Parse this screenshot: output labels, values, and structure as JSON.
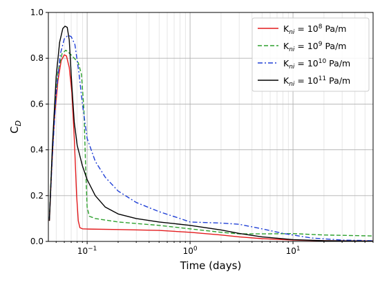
{
  "chart_data": {
    "type": "line",
    "x_scale": "log",
    "xlabel": "Time (days)",
    "ylabel": "C",
    "ylabel_sub": "D",
    "xlim": [
      0.042,
      60
    ],
    "ylim": [
      0,
      1.0
    ],
    "y_ticks": [
      0.0,
      0.2,
      0.4,
      0.6,
      0.8,
      1.0
    ],
    "y_tick_labels": [
      "0.0",
      "0.2",
      "0.4",
      "0.6",
      "0.8",
      "1.0"
    ],
    "x_ticks": [
      {
        "value": 0.1,
        "base": "10",
        "exp": "−1"
      },
      {
        "value": 1,
        "base": "10",
        "exp": "0"
      },
      {
        "value": 10,
        "base": "10",
        "exp": "1"
      }
    ],
    "grid": true,
    "legend_position": "top-right",
    "series": [
      {
        "name": "K_ni = 10^8 Pa/m",
        "legend": {
          "k": "K",
          "sub": "ni",
          "eq": " = 10",
          "exp": "8",
          "unit": " Pa/m"
        },
        "color": "#e31a1c",
        "dash": "solid",
        "points": [
          [
            0.043,
            0.09
          ],
          [
            0.045,
            0.3
          ],
          [
            0.048,
            0.53
          ],
          [
            0.052,
            0.7
          ],
          [
            0.056,
            0.79
          ],
          [
            0.06,
            0.815
          ],
          [
            0.063,
            0.81
          ],
          [
            0.067,
            0.76
          ],
          [
            0.071,
            0.65
          ],
          [
            0.075,
            0.45
          ],
          [
            0.079,
            0.2
          ],
          [
            0.082,
            0.09
          ],
          [
            0.085,
            0.06
          ],
          [
            0.09,
            0.055
          ],
          [
            0.1,
            0.054
          ],
          [
            0.2,
            0.052
          ],
          [
            0.5,
            0.048
          ],
          [
            1,
            0.04
          ],
          [
            2,
            0.028
          ],
          [
            3,
            0.02
          ],
          [
            5,
            0.012
          ],
          [
            10,
            0.006
          ],
          [
            20,
            0.003
          ],
          [
            60,
            0.002
          ]
        ]
      },
      {
        "name": "K_ni = 10^9 Pa/m",
        "legend": {
          "k": "K",
          "sub": "ni",
          "eq": " = 10",
          "exp": "9",
          "unit": " Pa/m"
        },
        "color": "#2ca02c",
        "dash": "dashed",
        "points": [
          [
            0.043,
            0.1
          ],
          [
            0.045,
            0.32
          ],
          [
            0.048,
            0.56
          ],
          [
            0.052,
            0.74
          ],
          [
            0.057,
            0.82
          ],
          [
            0.062,
            0.835
          ],
          [
            0.068,
            0.82
          ],
          [
            0.075,
            0.8
          ],
          [
            0.082,
            0.78
          ],
          [
            0.088,
            0.73
          ],
          [
            0.093,
            0.58
          ],
          [
            0.097,
            0.3
          ],
          [
            0.1,
            0.15
          ],
          [
            0.105,
            0.11
          ],
          [
            0.12,
            0.1
          ],
          [
            0.2,
            0.085
          ],
          [
            0.5,
            0.07
          ],
          [
            1,
            0.055
          ],
          [
            2,
            0.04
          ],
          [
            3,
            0.033
          ],
          [
            5,
            0.033
          ],
          [
            10,
            0.034
          ],
          [
            20,
            0.028
          ],
          [
            60,
            0.024
          ]
        ]
      },
      {
        "name": "K_ni = 10^10 Pa/m",
        "legend": {
          "k": "K",
          "sub": "ni",
          "eq": " = 10",
          "exp": "10",
          "unit": " Pa/m"
        },
        "color": "#1f3fd6",
        "dash": "dashdot",
        "points": [
          [
            0.043,
            0.1
          ],
          [
            0.046,
            0.38
          ],
          [
            0.05,
            0.65
          ],
          [
            0.055,
            0.82
          ],
          [
            0.06,
            0.885
          ],
          [
            0.065,
            0.9
          ],
          [
            0.07,
            0.895
          ],
          [
            0.076,
            0.86
          ],
          [
            0.083,
            0.74
          ],
          [
            0.09,
            0.6
          ],
          [
            0.1,
            0.45
          ],
          [
            0.12,
            0.35
          ],
          [
            0.15,
            0.28
          ],
          [
            0.2,
            0.22
          ],
          [
            0.3,
            0.17
          ],
          [
            0.5,
            0.13
          ],
          [
            0.8,
            0.1
          ],
          [
            1,
            0.085
          ],
          [
            2,
            0.08
          ],
          [
            3,
            0.075
          ],
          [
            5,
            0.055
          ],
          [
            8,
            0.035
          ],
          [
            15,
            0.015
          ],
          [
            30,
            0.006
          ],
          [
            60,
            0.003
          ]
        ]
      },
      {
        "name": "K_ni = 10^11 Pa/m",
        "legend": {
          "k": "K",
          "sub": "ni",
          "eq": " = 10",
          "exp": "11",
          "unit": " Pa/m"
        },
        "color": "#000000",
        "dash": "solid",
        "points": [
          [
            0.043,
            0.09
          ],
          [
            0.046,
            0.42
          ],
          [
            0.05,
            0.72
          ],
          [
            0.054,
            0.87
          ],
          [
            0.058,
            0.93
          ],
          [
            0.061,
            0.94
          ],
          [
            0.064,
            0.935
          ],
          [
            0.067,
            0.88
          ],
          [
            0.071,
            0.68
          ],
          [
            0.075,
            0.52
          ],
          [
            0.08,
            0.42
          ],
          [
            0.09,
            0.33
          ],
          [
            0.1,
            0.27
          ],
          [
            0.12,
            0.2
          ],
          [
            0.15,
            0.15
          ],
          [
            0.2,
            0.12
          ],
          [
            0.3,
            0.1
          ],
          [
            0.5,
            0.085
          ],
          [
            1,
            0.07
          ],
          [
            2,
            0.05
          ],
          [
            3,
            0.035
          ],
          [
            5,
            0.02
          ],
          [
            10,
            0.008
          ],
          [
            20,
            0.003
          ],
          [
            60,
            0.001
          ]
        ]
      }
    ]
  }
}
